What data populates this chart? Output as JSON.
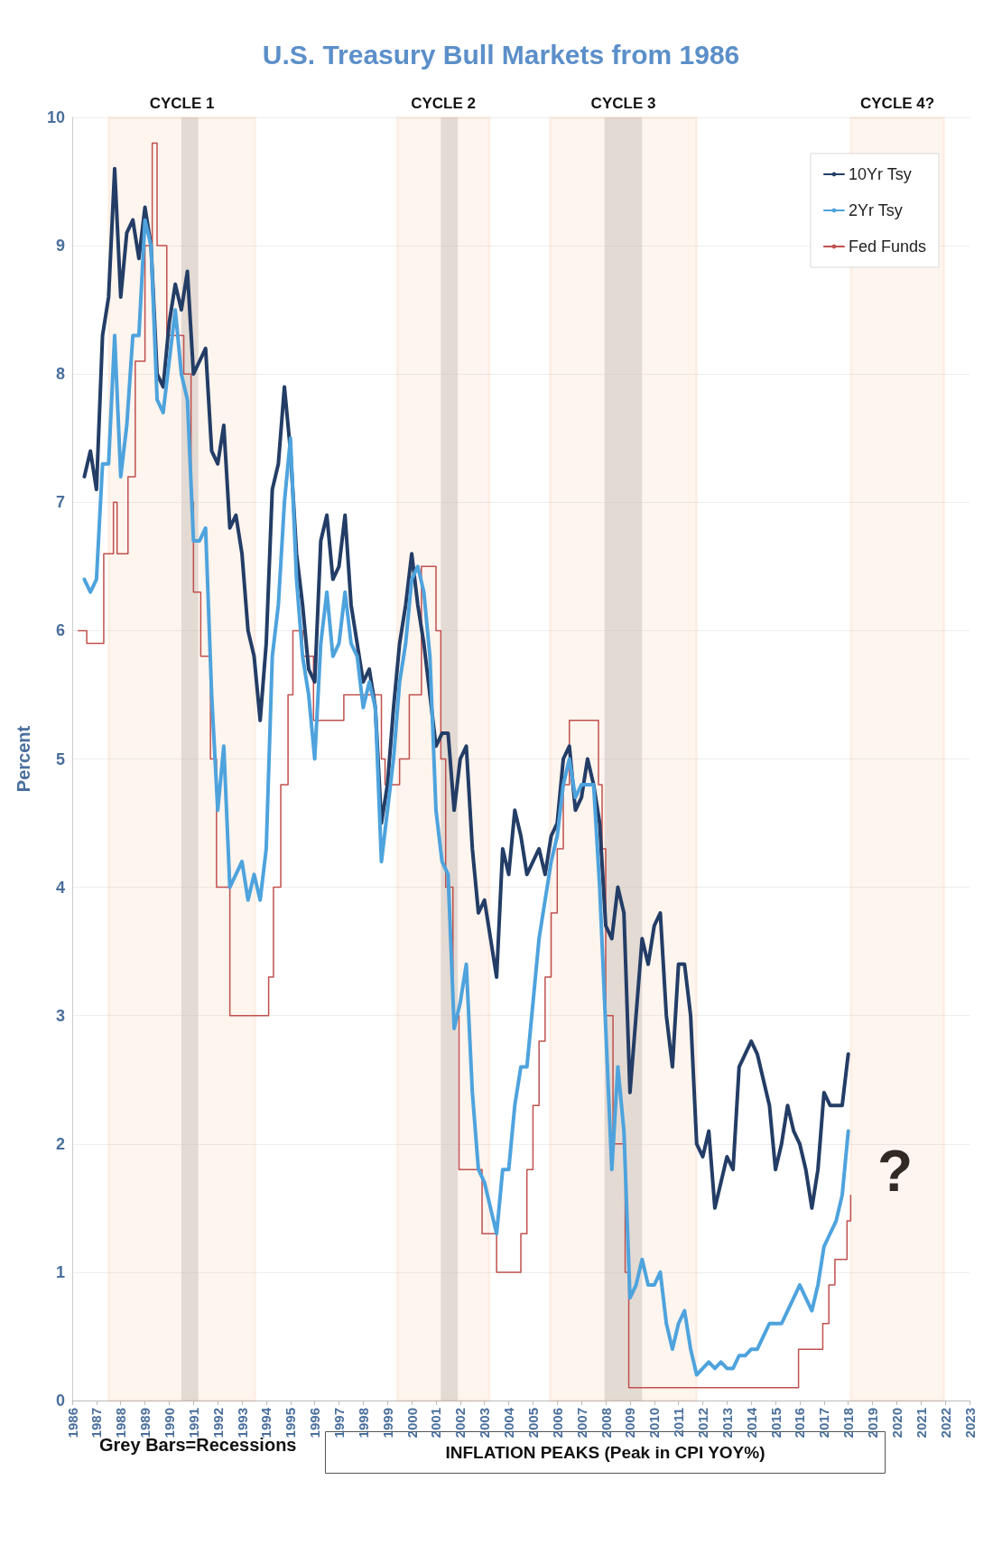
{
  "chart_data": {
    "type": "line",
    "title": "U.S. Treasury Bull Markets from 1986",
    "ylabel": "Percent",
    "x": [
      1986.5,
      1986.75,
      1987,
      1987.25,
      1987.5,
      1987.75,
      1988,
      1988.25,
      1988.5,
      1988.75,
      1989,
      1989.25,
      1989.5,
      1989.75,
      1990,
      1990.25,
      1990.5,
      1990.75,
      1991,
      1991.25,
      1991.5,
      1991.75,
      1992,
      1992.25,
      1992.5,
      1992.75,
      1993,
      1993.25,
      1993.5,
      1993.75,
      1994,
      1994.25,
      1994.5,
      1994.75,
      1995,
      1995.25,
      1995.5,
      1995.75,
      1996,
      1996.25,
      1996.5,
      1996.75,
      1997,
      1997.25,
      1997.5,
      1997.75,
      1998,
      1998.25,
      1998.5,
      1998.75,
      1999,
      1999.25,
      1999.5,
      1999.75,
      2000,
      2000.25,
      2000.5,
      2000.75,
      2001,
      2001.25,
      2001.5,
      2001.75,
      2002,
      2002.25,
      2002.5,
      2002.75,
      2003,
      2003.25,
      2003.5,
      2003.75,
      2004,
      2004.25,
      2004.5,
      2004.75,
      2005,
      2005.25,
      2005.5,
      2005.75,
      2006,
      2006.25,
      2006.5,
      2006.75,
      2007,
      2007.25,
      2007.5,
      2007.75,
      2008,
      2008.25,
      2008.5,
      2008.75,
      2009,
      2009.25,
      2009.5,
      2009.75,
      2010,
      2010.25,
      2010.5,
      2010.75,
      2011,
      2011.25,
      2011.5,
      2011.75,
      2012,
      2012.25,
      2012.5,
      2012.75,
      2013,
      2013.25,
      2013.5,
      2013.75,
      2014,
      2014.25,
      2014.5,
      2014.75,
      2015,
      2015.25,
      2015.5,
      2015.75,
      2016,
      2016.25,
      2016.5,
      2016.75,
      2017,
      2017.25,
      2017.5,
      2017.75,
      2018
    ],
    "series": [
      {
        "name": "10Yr Tsy",
        "color": "#233d66",
        "values": [
          7.2,
          7.4,
          7.1,
          8.3,
          8.6,
          9.6,
          8.6,
          9.1,
          9.2,
          8.9,
          9.3,
          9.0,
          8.0,
          7.9,
          8.4,
          8.7,
          8.5,
          8.8,
          8.0,
          8.1,
          8.2,
          7.4,
          7.3,
          7.6,
          6.8,
          6.9,
          6.6,
          6.0,
          5.8,
          5.3,
          5.9,
          7.1,
          7.3,
          7.9,
          7.4,
          6.6,
          6.2,
          5.7,
          5.6,
          6.7,
          6.9,
          6.4,
          6.5,
          6.9,
          6.2,
          5.9,
          5.6,
          5.7,
          5.4,
          4.5,
          4.8,
          5.4,
          5.9,
          6.2,
          6.6,
          6.2,
          5.9,
          5.5,
          5.1,
          5.2,
          5.2,
          4.6,
          5.0,
          5.1,
          4.3,
          3.8,
          3.9,
          3.6,
          3.3,
          4.3,
          4.1,
          4.6,
          4.4,
          4.1,
          4.2,
          4.3,
          4.1,
          4.4,
          4.5,
          5.0,
          5.1,
          4.6,
          4.7,
          5.0,
          4.8,
          4.5,
          3.7,
          3.6,
          4.0,
          3.8,
          2.4,
          3.0,
          3.6,
          3.4,
          3.7,
          3.8,
          3.0,
          2.6,
          3.4,
          3.4,
          3.0,
          2.0,
          1.9,
          2.1,
          1.5,
          1.7,
          1.9,
          1.8,
          2.6,
          2.7,
          2.8,
          2.7,
          2.5,
          2.3,
          1.8,
          2.0,
          2.3,
          2.1,
          2.0,
          1.8,
          1.5,
          1.8,
          2.4,
          2.3,
          2.3,
          2.3,
          2.7
        ]
      },
      {
        "name": "2Yr Tsy",
        "color": "#4ea3dd",
        "values": [
          6.4,
          6.3,
          6.4,
          7.3,
          7.3,
          8.3,
          7.2,
          7.6,
          8.3,
          8.3,
          9.2,
          9.0,
          7.8,
          7.7,
          8.1,
          8.5,
          8.0,
          7.8,
          6.7,
          6.7,
          6.8,
          5.5,
          4.6,
          5.1,
          4.0,
          4.1,
          4.2,
          3.9,
          4.1,
          3.9,
          4.3,
          5.8,
          6.2,
          7.0,
          7.5,
          6.4,
          5.8,
          5.5,
          5.0,
          5.9,
          6.3,
          5.8,
          5.9,
          6.3,
          5.9,
          5.8,
          5.4,
          5.6,
          5.4,
          4.2,
          4.6,
          5.0,
          5.6,
          5.9,
          6.4,
          6.5,
          6.3,
          5.8,
          4.6,
          4.2,
          4.1,
          2.9,
          3.1,
          3.4,
          2.4,
          1.8,
          1.7,
          1.5,
          1.3,
          1.8,
          1.8,
          2.3,
          2.6,
          2.6,
          3.1,
          3.6,
          3.9,
          4.2,
          4.4,
          4.8,
          5.0,
          4.7,
          4.8,
          4.8,
          4.8,
          4.0,
          2.9,
          1.8,
          2.6,
          2.1,
          0.8,
          0.9,
          1.1,
          0.9,
          0.9,
          1.0,
          0.6,
          0.4,
          0.6,
          0.7,
          0.4,
          0.2,
          0.25,
          0.3,
          0.25,
          0.3,
          0.25,
          0.25,
          0.35,
          0.35,
          0.4,
          0.4,
          0.5,
          0.6,
          0.6,
          0.6,
          0.7,
          0.8,
          0.9,
          0.8,
          0.7,
          0.9,
          1.2,
          1.3,
          1.4,
          1.6,
          2.1
        ]
      },
      {
        "name": "Fed Funds",
        "type": "step",
        "color": "#c0504d",
        "x": [
          1986.25,
          1986.6,
          1987.3,
          1987.7,
          1987.85,
          1988.3,
          1988.6,
          1989.0,
          1989.3,
          1989.5,
          1989.9,
          1990.6,
          1990.9,
          1991.0,
          1991.3,
          1991.7,
          1991.95,
          1992.5,
          1994.1,
          1994.3,
          1994.6,
          1994.9,
          1995.1,
          1995.5,
          1995.95,
          1997.2,
          1998.75,
          1998.9,
          1999.5,
          1999.9,
          2000.4,
          2001.0,
          2001.2,
          2001.4,
          2001.7,
          2001.95,
          2002.9,
          2003.5,
          2004.5,
          2004.75,
          2005.0,
          2005.25,
          2005.5,
          2005.75,
          2006.0,
          2006.25,
          2006.5,
          2007.7,
          2007.85,
          2008.0,
          2008.3,
          2008.8,
          2008.95,
          2015.95,
          2016.95,
          2017.2,
          2017.45,
          2017.95,
          2018.1
        ],
        "values": [
          6.0,
          5.9,
          6.6,
          7.0,
          6.6,
          7.2,
          8.1,
          9.0,
          9.8,
          9.0,
          8.3,
          8.0,
          7.0,
          6.3,
          5.8,
          5.0,
          4.0,
          3.0,
          3.3,
          4.0,
          4.8,
          5.5,
          6.0,
          5.8,
          5.3,
          5.5,
          5.0,
          4.8,
          5.0,
          5.5,
          6.5,
          6.0,
          5.0,
          4.0,
          3.0,
          1.8,
          1.3,
          1.0,
          1.3,
          1.8,
          2.3,
          2.8,
          3.3,
          3.8,
          4.3,
          4.8,
          5.3,
          4.8,
          4.3,
          3.0,
          2.0,
          1.0,
          0.1,
          0.4,
          0.6,
          0.9,
          1.1,
          1.4,
          1.6
        ]
      }
    ],
    "xlim": [
      1986,
      2023
    ],
    "xticks": [
      1986,
      1987,
      1988,
      1989,
      1990,
      1991,
      1992,
      1993,
      1994,
      1995,
      1996,
      1997,
      1998,
      1999,
      2000,
      2001,
      2002,
      2003,
      2004,
      2005,
      2006,
      2007,
      2008,
      2009,
      2010,
      2011,
      2012,
      2013,
      2014,
      2015,
      2016,
      2017,
      2018,
      2019,
      2020,
      2021,
      2022,
      2023
    ],
    "ylim": [
      0,
      10
    ],
    "yticks": [
      0,
      1,
      2,
      3,
      4,
      5,
      6,
      7,
      8,
      9,
      10
    ],
    "bands": [
      {
        "axis": "x",
        "from": 1990.5,
        "to": 1991.2,
        "color": "#bfbfbf"
      },
      {
        "axis": "x",
        "from": 2001.2,
        "to": 2001.9,
        "color": "#bfbfbf"
      },
      {
        "axis": "x",
        "from": 2007.95,
        "to": 2009.5,
        "color": "#bfbfbf"
      },
      {
        "axis": "x",
        "from": 1987.5,
        "to": 1993.55,
        "label": "CYCLE 1",
        "color": "#ed7d31"
      },
      {
        "axis": "x",
        "from": 1999.4,
        "to": 2003.2,
        "label": "CYCLE 2",
        "color": "#ed7d31"
      },
      {
        "axis": "x",
        "from": 2005.7,
        "to": 2011.75,
        "label": "CYCLE 3",
        "color": "#ed7d31"
      },
      {
        "axis": "x",
        "from": 2018.1,
        "to": 2021.95,
        "label": "CYCLE 4?",
        "color": "#ed7d31"
      }
    ],
    "annotations": [
      "Grey Bars=Recessions",
      "INFLATION PEAKS (Peak in CPI YOY%)",
      "?"
    ],
    "grid": "y",
    "legend": "top right",
    "marker": "none",
    "line_style": "solid"
  }
}
